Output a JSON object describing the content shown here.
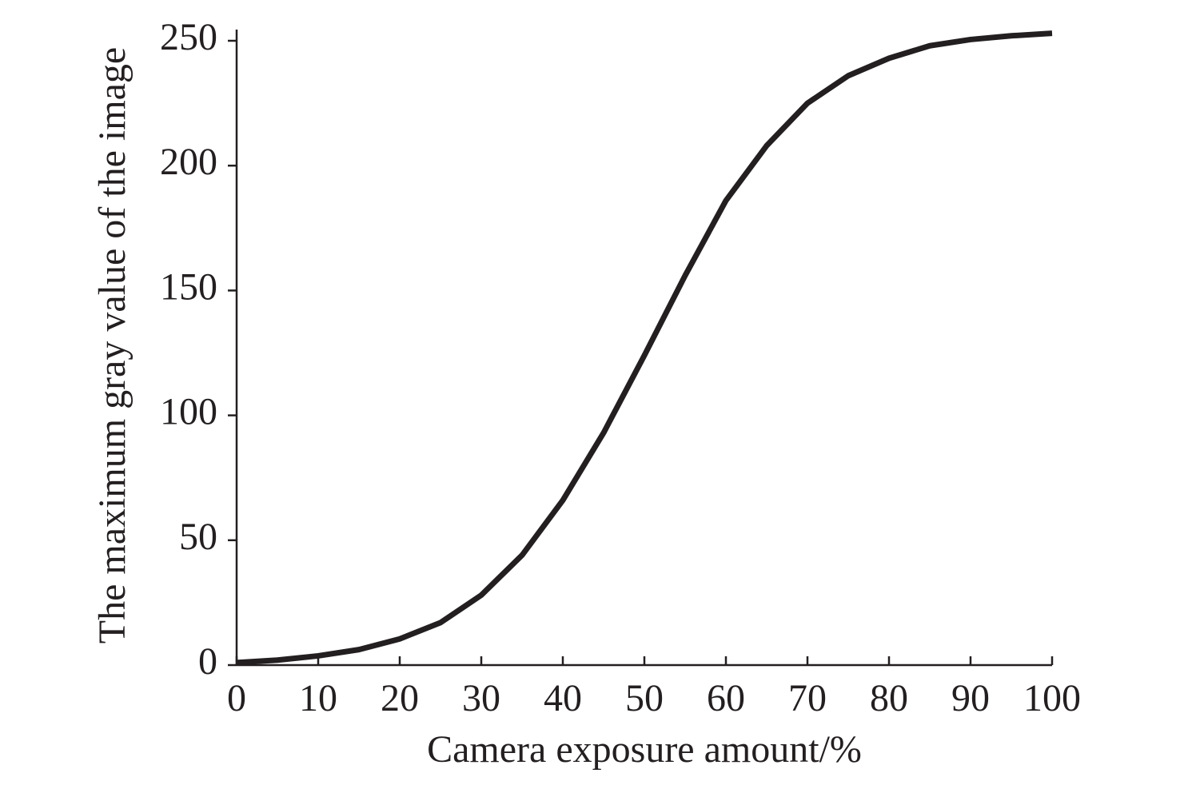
{
  "chart_data": {
    "type": "line",
    "x_label": "Camera exposure amount/%",
    "y_label": "The maximum gray value of the image",
    "x": [
      0,
      5,
      10,
      15,
      20,
      25,
      30,
      35,
      40,
      45,
      50,
      55,
      60,
      65,
      70,
      75,
      80,
      85,
      90,
      95,
      100
    ],
    "series": [
      {
        "name": "Maximum gray value",
        "color": "#231f20",
        "values": [
          1,
          2,
          3.7,
          6.2,
          10.5,
          17,
          28,
          44,
          66,
          93,
          124,
          156,
          186,
          208,
          225,
          236,
          243,
          248,
          250.5,
          252,
          253
        ]
      }
    ],
    "xlim": [
      0,
      100
    ],
    "xticks": [
      0,
      10,
      20,
      30,
      40,
      50,
      60,
      70,
      80,
      90,
      100
    ],
    "ylim": [
      0,
      250
    ],
    "yticks": [
      0,
      50,
      100,
      150,
      200,
      250
    ],
    "grid": false,
    "legend": false
  }
}
